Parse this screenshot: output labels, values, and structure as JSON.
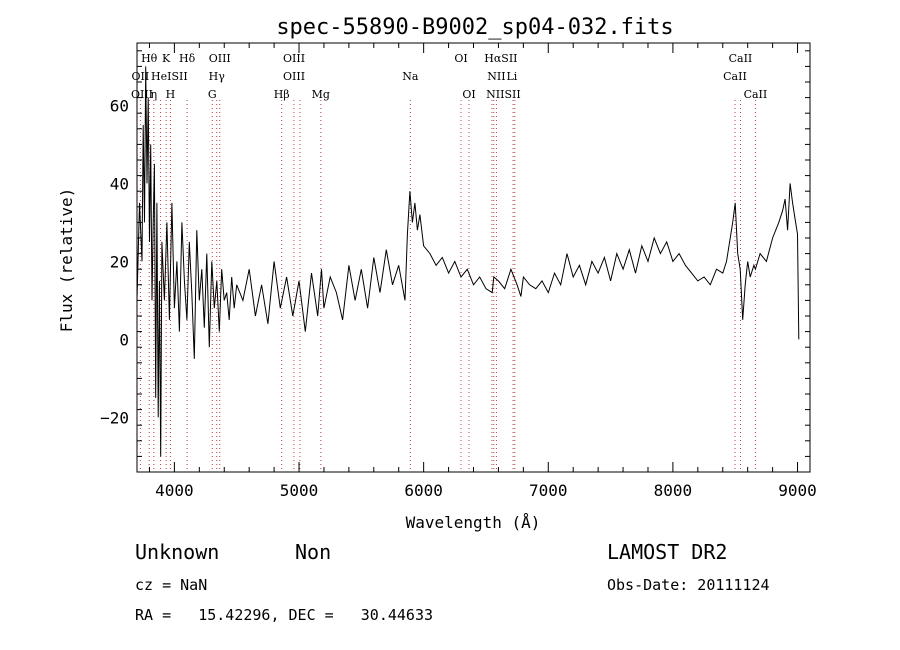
{
  "chart_data": {
    "type": "line",
    "title": "spec-55890-B9002_sp04-032.fits",
    "xlabel": "Wavelength (Å)",
    "ylabel": "Flux (relative)",
    "xlim": [
      3700,
      9100
    ],
    "ylim": [
      -34,
      76
    ],
    "x_ticks": [
      4000,
      5000,
      6000,
      7000,
      8000,
      9000
    ],
    "y_ticks": [
      -20,
      0,
      20,
      40,
      60
    ],
    "grid": false,
    "series": [
      {
        "color": "#000000",
        "x": [
          3700,
          3720,
          3740,
          3750,
          3760,
          3770,
          3780,
          3790,
          3800,
          3810,
          3820,
          3830,
          3840,
          3850,
          3860,
          3870,
          3880,
          3890,
          3900,
          3920,
          3940,
          3960,
          3980,
          4000,
          4020,
          4040,
          4060,
          4080,
          4100,
          4120,
          4140,
          4160,
          4180,
          4200,
          4220,
          4240,
          4260,
          4280,
          4300,
          4320,
          4340,
          4360,
          4380,
          4400,
          4420,
          4440,
          4460,
          4480,
          4500,
          4550,
          4600,
          4650,
          4700,
          4750,
          4800,
          4850,
          4900,
          4950,
          5000,
          5050,
          5100,
          5150,
          5180,
          5200,
          5250,
          5300,
          5350,
          5400,
          5450,
          5500,
          5550,
          5600,
          5650,
          5700,
          5750,
          5800,
          5850,
          5870,
          5890,
          5910,
          5930,
          5950,
          5970,
          6000,
          6050,
          6100,
          6150,
          6200,
          6250,
          6300,
          6350,
          6400,
          6450,
          6500,
          6550,
          6563,
          6600,
          6650,
          6700,
          6750,
          6780,
          6800,
          6850,
          6900,
          6950,
          7000,
          7050,
          7100,
          7150,
          7200,
          7250,
          7300,
          7350,
          7400,
          7450,
          7500,
          7550,
          7600,
          7650,
          7700,
          7750,
          7800,
          7850,
          7900,
          7950,
          8000,
          8050,
          8100,
          8150,
          8200,
          8250,
          8300,
          8350,
          8400,
          8430,
          8450,
          8480,
          8500,
          8520,
          8540,
          8560,
          8580,
          8600,
          8620,
          8650,
          8662,
          8700,
          8750,
          8800,
          8850,
          8880,
          8900,
          8920,
          8940,
          8960,
          8980,
          9000,
          9010
        ],
        "y": [
          10,
          35,
          20,
          55,
          30,
          70,
          40,
          62,
          25,
          50,
          10,
          30,
          45,
          -15,
          35,
          -20,
          15,
          -30,
          25,
          10,
          30,
          5,
          35,
          8,
          20,
          2,
          30,
          15,
          5,
          25,
          12,
          -5,
          28,
          10,
          18,
          3,
          22,
          -2,
          20,
          8,
          15,
          2,
          18,
          10,
          12,
          5,
          16,
          8,
          14,
          10,
          18,
          6,
          14,
          4,
          20,
          8,
          16,
          6,
          15,
          2,
          17,
          6,
          18,
          8,
          16,
          12,
          5,
          19,
          10,
          18,
          8,
          21,
          12,
          23,
          14,
          19,
          10,
          27,
          38,
          30,
          35,
          28,
          32,
          24,
          22,
          19,
          21,
          17,
          20,
          16,
          18,
          14,
          16,
          13,
          12,
          16,
          15,
          13,
          18,
          14,
          11,
          16,
          14,
          13,
          15,
          12,
          17,
          14,
          22,
          16,
          19,
          14,
          20,
          17,
          21,
          15,
          22,
          18,
          23,
          17,
          24,
          20,
          26,
          22,
          25,
          20,
          22,
          19,
          17,
          15,
          16,
          14,
          18,
          17,
          20,
          24,
          30,
          35,
          22,
          18,
          5,
          14,
          20,
          16,
          19,
          18,
          22,
          20,
          26,
          30,
          33,
          36,
          28,
          40,
          35,
          31,
          27,
          0
        ]
      }
    ],
    "line_labels": [
      {
        "text": "Hθ",
        "x": 3798,
        "row": 0
      },
      {
        "text": "K",
        "x": 3934,
        "row": 0
      },
      {
        "text": "Hδ",
        "x": 4102,
        "row": 0
      },
      {
        "text": "OIII",
        "x": 4364,
        "row": 0
      },
      {
        "text": "OIII",
        "x": 4960,
        "row": 0
      },
      {
        "text": "OI",
        "x": 6300,
        "row": 0
      },
      {
        "text": "HαSII",
        "x": 6620,
        "row": 0
      },
      {
        "text": "CaII",
        "x": 8542,
        "row": 0
      },
      {
        "text": "OII",
        "x": 3727,
        "row": 1
      },
      {
        "text": "HeISII",
        "x": 3960,
        "row": 1
      },
      {
        "text": "Hγ",
        "x": 4340,
        "row": 1
      },
      {
        "text": "OIII",
        "x": 4960,
        "row": 1
      },
      {
        "text": "Na",
        "x": 5893,
        "row": 1
      },
      {
        "text": "NII",
        "x": 6584,
        "row": 1
      },
      {
        "text": "Li",
        "x": 6708,
        "row": 1
      },
      {
        "text": "CaII",
        "x": 8498,
        "row": 1
      },
      {
        "text": "OIII",
        "x": 3740,
        "row": 2
      },
      {
        "text": "η",
        "x": 3835,
        "row": 2
      },
      {
        "text": "H",
        "x": 3968,
        "row": 2
      },
      {
        "text": "G",
        "x": 4304,
        "row": 2
      },
      {
        "text": "Hβ",
        "x": 4861,
        "row": 2
      },
      {
        "text": "Mg",
        "x": 5175,
        "row": 2
      },
      {
        "text": "OI",
        "x": 6364,
        "row": 2
      },
      {
        "text": "NIISII",
        "x": 6640,
        "row": 2
      },
      {
        "text": "CaII",
        "x": 8662,
        "row": 2
      }
    ],
    "line_marks": [
      3727,
      3798,
      3835,
      3889,
      3934,
      3968,
      4102,
      4304,
      4340,
      4364,
      4861,
      4959,
      5007,
      5175,
      5893,
      6300,
      6364,
      6548,
      6563,
      6584,
      6717,
      6731,
      8498,
      8542,
      8662
    ]
  },
  "info": {
    "class": "Unknown",
    "subclass": "Non",
    "survey": "LAMOST DR2",
    "cz": "cz = NaN",
    "obs_date": "Obs-Date: 20111124",
    "coords": "RA =   15.42296, DEC =   30.44633"
  }
}
